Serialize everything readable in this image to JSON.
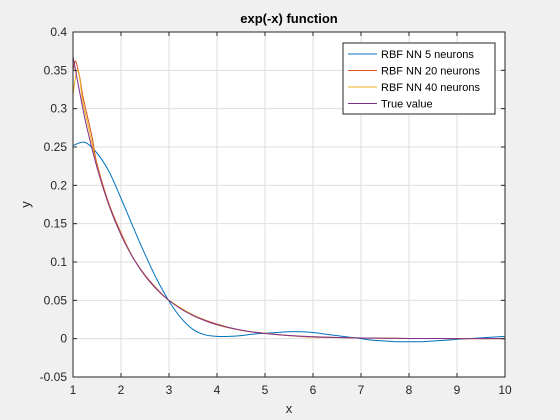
{
  "chart_data": {
    "type": "line",
    "title": "exp(-x) function",
    "xlabel": "x",
    "ylabel": "y",
    "xlim": [
      1,
      10
    ],
    "ylim": [
      -0.05,
      0.4
    ],
    "xticks": [
      1,
      2,
      3,
      4,
      5,
      6,
      7,
      8,
      9,
      10
    ],
    "yticks": [
      -0.05,
      0,
      0.05,
      0.1,
      0.15,
      0.2,
      0.25,
      0.3,
      0.35,
      0.4
    ],
    "ytick_labels": [
      "-0.05",
      "0",
      "0.05",
      "0.1",
      "0.15",
      "0.2",
      "0.25",
      "0.3",
      "0.35",
      "0.4"
    ],
    "grid": true,
    "legend_position": "top-right",
    "series": [
      {
        "name": "RBF NN 5 neurons",
        "color": "#0072BD",
        "x": [
          1,
          1.25,
          1.5,
          1.75,
          2,
          2.25,
          2.5,
          2.75,
          3,
          3.25,
          3.5,
          3.75,
          4,
          4.25,
          4.5,
          4.75,
          5,
          5.25,
          5.5,
          5.75,
          6,
          6.25,
          6.5,
          6.75,
          7,
          7.25,
          7.5,
          7.75,
          8,
          8.25,
          8.5,
          8.75,
          9,
          9.25,
          9.5,
          9.75,
          10
        ],
        "y": [
          0.252,
          0.256,
          0.242,
          0.218,
          0.183,
          0.146,
          0.11,
          0.077,
          0.049,
          0.027,
          0.012,
          0.005,
          0.003,
          0.003,
          0.004,
          0.006,
          0.007,
          0.008,
          0.009,
          0.009,
          0.008,
          0.006,
          0.004,
          0.002,
          0.0,
          -0.002,
          -0.003,
          -0.004,
          -0.004,
          -0.004,
          -0.003,
          -0.002,
          -0.001,
          0.0,
          0.001,
          0.002,
          0.003
        ]
      },
      {
        "name": "RBF NN 20 neurons",
        "color": "#D95319",
        "x": [
          1,
          1.05,
          1.1,
          1.15,
          1.2,
          1.3,
          1.4,
          1.5,
          1.75,
          2,
          2.25,
          2.5,
          2.75,
          3,
          3.5,
          4,
          4.5,
          5,
          5.5,
          6,
          6.5,
          7,
          7.5,
          8,
          8.5,
          9,
          9.5,
          10
        ],
        "y": [
          0.35,
          0.362,
          0.352,
          0.338,
          0.318,
          0.29,
          0.262,
          0.228,
          0.176,
          0.138,
          0.106,
          0.083,
          0.065,
          0.05,
          0.031,
          0.019,
          0.011,
          0.007,
          0.004,
          0.002,
          0.0015,
          0.0009,
          0.0005,
          0.0003,
          0.0002,
          0.0001,
          0.0001,
          0.0001
        ]
      },
      {
        "name": "RBF NN 40 neurons",
        "color": "#EDB120",
        "x": [
          1,
          1.05,
          1.1,
          1.15,
          1.2,
          1.3,
          1.4,
          1.5,
          1.75,
          2,
          2.25,
          2.5,
          2.75,
          3,
          3.5,
          4,
          4.5,
          5,
          5.5,
          6,
          6.5,
          7,
          7.5,
          8,
          8.5,
          9,
          9.5,
          10
        ],
        "y": [
          0.318,
          0.34,
          0.35,
          0.335,
          0.31,
          0.282,
          0.254,
          0.224,
          0.174,
          0.136,
          0.106,
          0.082,
          0.064,
          0.05,
          0.031,
          0.018,
          0.011,
          0.007,
          0.004,
          0.0025,
          0.0015,
          0.0009,
          0.0005,
          0.0003,
          0.0002,
          0.0001,
          0.0001,
          0.0001
        ]
      },
      {
        "name": "True value",
        "color": "#7E2F8E",
        "x": [
          1,
          1.25,
          1.5,
          1.75,
          2,
          2.25,
          2.5,
          2.75,
          3,
          3.25,
          3.5,
          3.75,
          4,
          4.5,
          5,
          5.5,
          6,
          6.5,
          7,
          7.5,
          8,
          8.5,
          9,
          9.5,
          10
        ],
        "y": [
          0.3679,
          0.2865,
          0.2231,
          0.1738,
          0.1353,
          0.1054,
          0.0821,
          0.0639,
          0.0498,
          0.0388,
          0.0302,
          0.0235,
          0.0183,
          0.0111,
          0.0067,
          0.0041,
          0.0025,
          0.0015,
          0.0009,
          0.0006,
          0.0003,
          0.0002,
          0.0001,
          0.0001,
          5e-05
        ]
      }
    ]
  }
}
